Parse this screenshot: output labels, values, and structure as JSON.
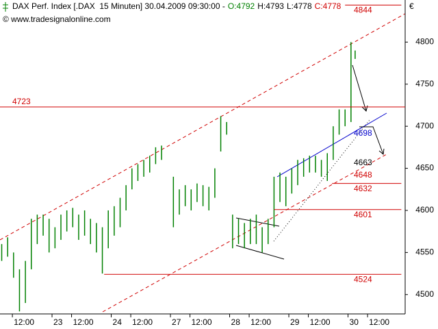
{
  "chart_data": {
    "type": "ohlc",
    "title": "DAX Perf. Index [.DAX  15 Minuten] 30.04.2009 09:30:00 -",
    "quote": [
      {
        "text": "O:4792",
        "color": "#008000"
      },
      {
        "text": "H:4793",
        "color": "#000000"
      },
      {
        "text": "L:4778",
        "color": "#000000"
      },
      {
        "text": "C:4778",
        "color": "#d00000"
      }
    ],
    "source": "© www.tradesignalonline.com",
    "currency": "€",
    "x": [
      -0.85,
      -0.75,
      -0.65,
      -0.55,
      -0.45,
      -0.35,
      -0.25,
      -0.15,
      -0.05,
      0.05,
      0.15,
      0.25,
      0.35,
      0.45,
      0.55,
      0.65,
      0.75,
      0.85,
      0.95,
      1.05,
      1.15,
      1.25,
      1.35,
      1.45,
      1.55,
      1.65,
      1.75,
      1.85,
      2.05,
      2.15,
      2.25,
      2.35,
      2.45,
      2.55,
      2.65,
      2.75,
      2.85,
      2.95,
      3.05,
      3.15,
      3.25,
      3.35,
      3.45,
      3.55,
      3.65,
      3.75,
      3.85,
      3.95,
      4.05,
      4.15,
      4.25,
      4.35,
      4.45,
      4.55,
      4.65,
      4.75,
      4.85,
      4.95,
      5.05,
      5.12
    ],
    "series": [
      {
        "color": "#008000",
        "high": [
          4560,
          4568,
          4550,
          4530,
          4540,
          4590,
          4595,
          4595,
          4590,
          4580,
          4595,
          4600,
          4603,
          4595,
          4600,
          4590,
          4585,
          4580,
          4600,
          4605,
          4615,
          4630,
          4650,
          4655,
          4660,
          4665,
          4675,
          4677,
          4640,
          4625,
          4630,
          4625,
          4632,
          4630,
          4628,
          4650,
          4712,
          4705,
          4595,
          4590,
          4585,
          4590,
          4595,
          4580,
          4590,
          4640,
          4645,
          4640,
          4650,
          4660,
          4662,
          4665,
          4665,
          4660,
          4668,
          4700,
          4720,
          4720,
          4800,
          4790
        ],
        "low": [
          4540,
          4545,
          4520,
          4480,
          4490,
          4530,
          4560,
          4570,
          4550,
          4555,
          4565,
          4575,
          4580,
          4565,
          4570,
          4560,
          4550,
          4525,
          4555,
          4570,
          4580,
          4600,
          4625,
          4635,
          4640,
          4645,
          4655,
          4660,
          4580,
          4595,
          4605,
          4600,
          4610,
          4605,
          4600,
          4615,
          4670,
          4690,
          4555,
          4560,
          4555,
          4560,
          4560,
          4550,
          4560,
          4580,
          4610,
          4605,
          4620,
          4630,
          4640,
          4645,
          4645,
          4640,
          4635,
          4660,
          4690,
          4700,
          4705,
          4780
        ]
      }
    ],
    "xlim": [
      -0.879,
      5.965
    ],
    "ylim": [
      4477,
      4850
    ],
    "yticks": [
      4500,
      4550,
      4600,
      4650,
      4700,
      4750,
      4800
    ],
    "xticks": [
      {
        "value": -0.67,
        "label": "12:00"
      },
      {
        "value": 0,
        "label": "23"
      },
      {
        "value": 0.33,
        "label": "12:00"
      },
      {
        "value": 1,
        "label": "24"
      },
      {
        "value": 1.33,
        "label": "12:00"
      },
      {
        "value": 2,
        "label": "27"
      },
      {
        "value": 2.33,
        "label": "12:00"
      },
      {
        "value": 3,
        "label": "28"
      },
      {
        "value": 3.33,
        "label": "12:00"
      },
      {
        "value": 4,
        "label": "29"
      },
      {
        "value": 4.33,
        "label": "12:00"
      },
      {
        "value": 5,
        "label": "30"
      },
      {
        "value": 5.33,
        "label": "12:00"
      }
    ],
    "levels": [
      {
        "value": 4844,
        "color": "#d00000",
        "xrange": [
          4.95,
          5.9
        ]
      },
      {
        "value": 4723,
        "color": "#d00000",
        "xrange": [
          -0.879,
          5.965
        ]
      },
      {
        "value": 4698,
        "color": "#0000cc"
      },
      {
        "value": 4663,
        "color": "#000000"
      },
      {
        "value": 4648,
        "color": "#d00000"
      },
      {
        "value": 4632,
        "color": "#d00000",
        "xrange": [
          4.73,
          5.9
        ]
      },
      {
        "value": 4601,
        "color": "#d00000",
        "xrange": [
          3.75,
          5.9
        ]
      },
      {
        "value": 4524,
        "color": "#d00000",
        "xrange": [
          0.88,
          5.9
        ]
      }
    ]
  }
}
